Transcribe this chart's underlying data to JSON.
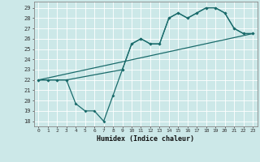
{
  "xlabel": "Humidex (Indice chaleur)",
  "xlim": [
    -0.5,
    23.5
  ],
  "ylim": [
    17.5,
    29.6
  ],
  "yticks": [
    18,
    19,
    20,
    21,
    22,
    23,
    24,
    25,
    26,
    27,
    28,
    29
  ],
  "xticks": [
    0,
    1,
    2,
    3,
    4,
    5,
    6,
    7,
    8,
    9,
    10,
    11,
    12,
    13,
    14,
    15,
    16,
    17,
    18,
    19,
    20,
    21,
    22,
    23
  ],
  "bg_color": "#cce8e8",
  "line_color": "#1a6b6b",
  "series1_x": [
    0,
    1,
    2,
    3,
    4,
    5,
    6,
    7,
    8,
    9,
    10,
    11,
    12,
    13,
    14,
    15,
    16,
    17,
    18,
    19,
    20,
    21,
    22,
    23
  ],
  "series1_y": [
    22,
    22,
    22,
    22,
    19.7,
    19,
    19,
    18,
    20.5,
    23,
    25.5,
    26,
    25.5,
    25.5,
    28,
    28.5,
    28,
    28.5,
    29,
    29,
    28.5,
    27,
    26.5,
    26.5
  ],
  "series2_x": [
    0,
    1,
    2,
    3,
    9,
    10,
    11,
    12,
    13,
    14,
    15,
    16,
    17,
    18,
    19,
    20,
    21,
    22,
    23
  ],
  "series2_y": [
    22,
    22,
    22,
    22,
    23,
    25.5,
    26,
    25.5,
    25.5,
    28,
    28.5,
    28,
    28.5,
    29,
    29,
    28.5,
    27,
    26.5,
    26.5
  ],
  "series3_x": [
    0,
    23
  ],
  "series3_y": [
    22,
    26.5
  ]
}
